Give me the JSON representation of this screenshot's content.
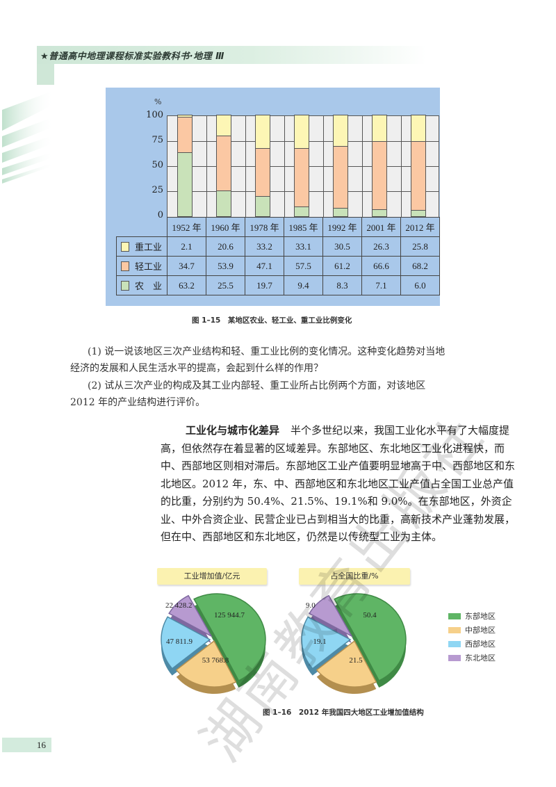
{
  "header": {
    "title": "★普通高中地理课程标准实验教科书·地理 Ⅲ"
  },
  "figure_1_15": {
    "y_unit": "%",
    "y_ticks": [
      "100",
      "75",
      "50",
      "25",
      "0"
    ],
    "years": [
      "1952 年",
      "1960 年",
      "1978 年",
      "1985 年",
      "1992 年",
      "2001 年",
      "2012 年"
    ],
    "rows": [
      {
        "label": "重工业",
        "color": "#fdf6b5",
        "values": [
          "2.1",
          "20.6",
          "33.2",
          "33.1",
          "30.5",
          "26.3",
          "25.8"
        ]
      },
      {
        "label": "轻工业",
        "color": "#fbc8a3",
        "values": [
          "34.7",
          "53.9",
          "47.1",
          "57.5",
          "61.2",
          "66.6",
          "68.2"
        ]
      },
      {
        "label": "农　业",
        "color": "#c9e2b9",
        "values": [
          "63.2",
          "25.5",
          "19.7",
          "9.4",
          "8.3",
          "7.1",
          "6.0"
        ]
      }
    ],
    "caption": "图 1–15　某地区农业、轻工业、重工业比例变化"
  },
  "questions": {
    "q1_line1": "(1) 说一说该地区三次产业结构和轻、重工业比例的变化情况。这种变化趋势对当地",
    "q1_line2": "经济的发展和人民生活水平的提高，会起到什么样的作用？",
    "q2_line1": "(2) 试从三次产业的构成及其工业内部轻、重工业所占比例两个方面，对该地区",
    "q2_line2": "2012 年的产业结构进行评价。"
  },
  "section": {
    "heading": "工业化与城市化差异",
    "body": "半个多世纪以来，我国工业化水平有了大幅度提高，但依然存在着显著的区域差异。东部地区、东北地区工业化进程快，而中、西部地区则相对滞后。东部地区工业产值要明显地高于中、西部地区和东北地区。2012 年，东、中、西部地区和东北地区工业产值占全国工业总产值的比重，分别约为 50.4%、21.5%、19.1%和 9.0%。在东部地区，外资企业、中外合资企业、民营企业已占到相当大的比重，高新技术产业蓬勃发展，但在中、西部地区和东北地区，仍然是以传统型工业为主体。"
  },
  "figure_1_16": {
    "pie1_title": "工业增加值/亿元",
    "pie2_title": "占全国比重/%",
    "legend": [
      {
        "label": "东部地区",
        "color": "#5fb565"
      },
      {
        "label": "中部地区",
        "color": "#f6d08a"
      },
      {
        "label": "西部地区",
        "color": "#8fd6f3"
      },
      {
        "label": "东北地区",
        "color": "#b79ad0"
      }
    ],
    "pie1_labels": [
      "125 944.7",
      "53 768.8",
      "47 811.9",
      "22 428.2"
    ],
    "pie2_labels": [
      "50.4",
      "21.5",
      "19.1",
      "9.0"
    ],
    "caption": "图 1–16　2012 年我国四大地区工业增加值结构"
  },
  "page_number": "16",
  "watermark": "湖南教育出版社",
  "chart_data": [
    {
      "type": "bar",
      "stacked": true,
      "title": "图 1–15 某地区农业、轻工业、重工业比例变化",
      "categories": [
        "1952 年",
        "1960 年",
        "1978 年",
        "1985 年",
        "1992 年",
        "2001 年",
        "2012 年"
      ],
      "series": [
        {
          "name": "农业",
          "values": [
            63.2,
            25.5,
            19.7,
            9.4,
            8.3,
            7.1,
            6.0
          ]
        },
        {
          "name": "轻工业",
          "values": [
            34.7,
            53.9,
            47.1,
            57.5,
            61.2,
            66.6,
            68.2
          ]
        },
        {
          "name": "重工业",
          "values": [
            2.1,
            20.6,
            33.2,
            33.1,
            30.5,
            26.3,
            25.8
          ]
        }
      ],
      "ylabel": "%",
      "ylim": [
        0,
        100
      ],
      "yticks": [
        0,
        25,
        50,
        75,
        100
      ],
      "grid": true,
      "legend_position": "table-below"
    },
    {
      "type": "pie",
      "title": "工业增加值/亿元",
      "categories": [
        "东部地区",
        "中部地区",
        "西部地区",
        "东北地区"
      ],
      "values": [
        125944.7,
        53768.8,
        47811.9,
        22428.2
      ]
    },
    {
      "type": "pie",
      "title": "占全国比重/%",
      "categories": [
        "东部地区",
        "中部地区",
        "西部地区",
        "东北地区"
      ],
      "values": [
        50.4,
        21.5,
        19.1,
        9.0
      ],
      "legend_position": "right"
    }
  ]
}
